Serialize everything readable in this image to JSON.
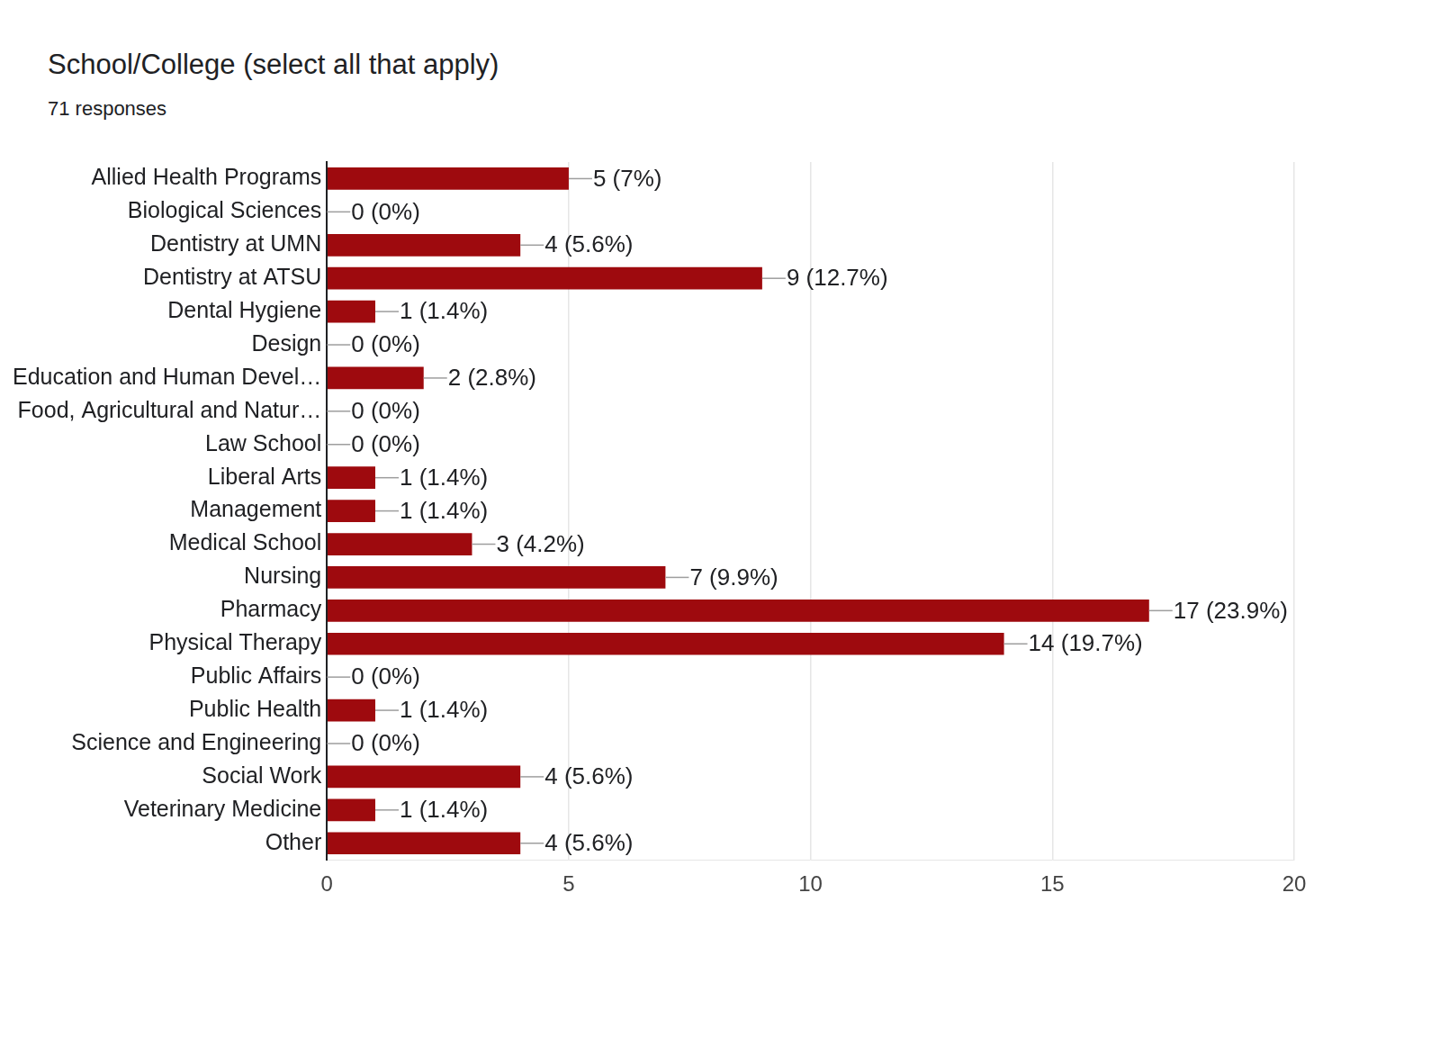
{
  "chart_data": {
    "type": "bar",
    "title": "School/College (select all that apply)",
    "subtitle": "71 responses",
    "orientation": "horizontal",
    "categories": [
      "Allied Health Programs",
      "Biological Sciences",
      "Dentistry at UMN",
      "Dentistry at ATSU",
      "Dental Hygiene",
      "Design",
      "Education and Human Devel…",
      "Food, Agricultural and Natur…",
      "Law School",
      "Liberal Arts",
      "Management",
      "Medical School",
      "Nursing",
      "Pharmacy",
      "Physical Therapy",
      "Public Affairs",
      "Public Health",
      "Science and Engineering",
      "Social Work",
      "Veterinary Medicine",
      "Other"
    ],
    "values": [
      5,
      0,
      4,
      9,
      1,
      0,
      2,
      0,
      0,
      1,
      1,
      3,
      7,
      17,
      14,
      0,
      1,
      0,
      4,
      1,
      4
    ],
    "value_labels": [
      "5 (7%)",
      "0 (0%)",
      "4 (5.6%)",
      "9 (12.7%)",
      "1 (1.4%)",
      "0 (0%)",
      "2 (2.8%)",
      "0 (0%)",
      "0 (0%)",
      "1 (1.4%)",
      "1 (1.4%)",
      "3 (4.2%)",
      "7 (9.9%)",
      "17 (23.9%)",
      "14 (19.7%)",
      "0 (0%)",
      "1 (1.4%)",
      "0 (0%)",
      "4 (5.6%)",
      "1 (1.4%)",
      "4 (5.6%)"
    ],
    "color": "#9e0a0e",
    "xlim": [
      0,
      20
    ],
    "xticks": [
      0,
      5,
      10,
      15,
      20
    ],
    "grid": true,
    "data_labels": true
  }
}
